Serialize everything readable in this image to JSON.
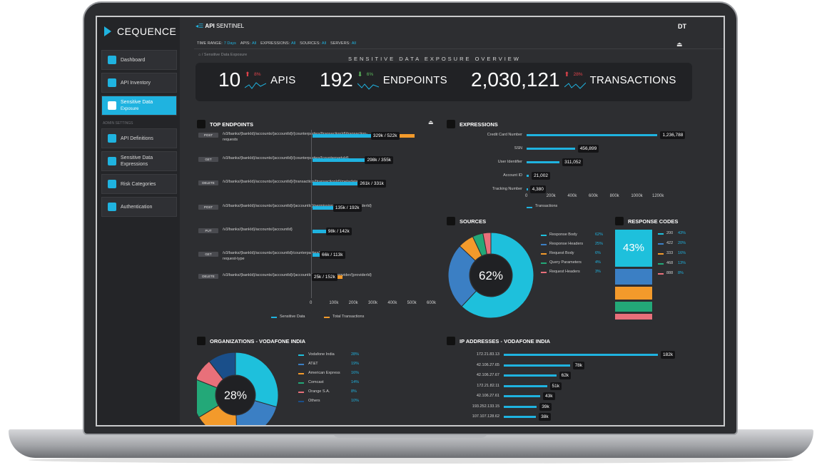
{
  "sidebar": {
    "logo_text": "CEQUENCE",
    "items": [
      {
        "label": "Dashboard",
        "icon": "dashboard-icon"
      },
      {
        "label": "API Inventory",
        "icon": "inventory-icon"
      },
      {
        "label": "Sensitive Data",
        "label2": "Exposure",
        "icon": "sensitive-data-icon",
        "active": true
      }
    ],
    "admin_label": "ADMIN SETTINGS",
    "admin_items": [
      {
        "label": "API Definitions",
        "icon": "document-icon"
      },
      {
        "label": "Sensitive Data",
        "label2": "Expressions",
        "icon": "expressions-icon"
      },
      {
        "label": "Risk Categories",
        "icon": "shield-icon"
      },
      {
        "label": "Authentication",
        "icon": "lock-icon"
      }
    ]
  },
  "header": {
    "app_title": "API",
    "app_subtitle": "SENTINEL",
    "user_initials": "DT",
    "filters": [
      {
        "label": "TIME RANGE:",
        "value": "7 Days"
      },
      {
        "label": "APIS:",
        "value": "All"
      },
      {
        "label": "EXPRESSIONS:",
        "value": "All"
      },
      {
        "label": "SOURCES:",
        "value": "All"
      },
      {
        "label": "SERVERS:",
        "value": "All"
      }
    ],
    "breadcrumb": "/ Sensitive Data Exposure"
  },
  "overview": {
    "title": "SENSITIVE DATA EXPOSURE OVERVIEW",
    "kpis": [
      {
        "value": "10",
        "label": "APIS",
        "change": "8%",
        "direction": "up",
        "color": "#e2434b"
      },
      {
        "value": "192",
        "label": "ENDPOINTS",
        "change": "6%",
        "direction": "down",
        "color": "#5cb85c"
      },
      {
        "value": "2,030,121",
        "label": "TRANSACTIONS",
        "change": "28%",
        "direction": "up",
        "color": "#e2434b"
      }
    ]
  },
  "top_endpoints": {
    "title": "TOP ENDPOINTS",
    "legend": [
      "Sensitive Data",
      "Total Transactions"
    ],
    "x_ticks": [
      "0",
      "100k",
      "200k",
      "300k",
      "400k",
      "500k",
      "600k"
    ],
    "rows": [
      {
        "method": "POST",
        "path": "/v3/banks/{bankId}/accounts/{accountId}/{counterparties/{transactionId}/transaction-requests",
        "sensitive": 329,
        "total": 522,
        "label": "329k / 522k"
      },
      {
        "method": "GET",
        "path": "/v3/banks/{bankId}/accounts/{accountId}/{counterparties/{counterpartyId}",
        "sensitive": 298,
        "total": 355,
        "label": "298k / 355k"
      },
      {
        "method": "DELETE",
        "path": "/v3/banks/{bankId}/accounts/{accountId}/{transaction/{transactionId}/metadata/narrative",
        "sensitive": 261,
        "total": 331,
        "label": "261k / 331k"
      },
      {
        "method": "POST",
        "path": "/v3/banks/{bankId}/accounts/{accountId}/{accountId}/permissions/provider/{providerId}",
        "sensitive": 135,
        "total": 192,
        "label": "135k / 192k"
      },
      {
        "method": "PUT",
        "path": "/v3/banks/{bankId}/accounts/{accountId}",
        "sensitive": 98,
        "total": 142,
        "label": "98k / 142k"
      },
      {
        "method": "GET",
        "path": "/v3/banks/{bankId}/accounts/{accountId}/counterparties/transaction-request-type",
        "sensitive": 66,
        "total": 113,
        "label": "66k / 113k"
      },
      {
        "method": "DELETE",
        "path": "/v3/banks/{bankId}/accounts/{accountId}/{accountId}/permissions/provider/{providerId}",
        "sensitive": 25,
        "total": 152,
        "label": "25k / 152k"
      }
    ]
  },
  "expressions": {
    "title": "EXPRESSIONS",
    "legend": "Transactions",
    "x_ticks": [
      "0",
      "200k",
      "400k",
      "600k",
      "800k",
      "1000k",
      "1200k"
    ],
    "rows": [
      {
        "label": "Credit Card Number",
        "value": 1236788,
        "display": "1,236,788"
      },
      {
        "label": "SSN",
        "value": 456899,
        "display": "456,899"
      },
      {
        "label": "User Identifier",
        "value": 311052,
        "display": "311,052"
      },
      {
        "label": "Account ID",
        "value": 21002,
        "display": "21,002"
      },
      {
        "label": "Tracking Number",
        "value": 4380,
        "display": "4,380"
      }
    ]
  },
  "sources": {
    "title": "SOURCES",
    "center": "62%",
    "items": [
      {
        "label": "Response Body",
        "pct": "62%",
        "value": 62,
        "color": "#1ec0dc"
      },
      {
        "label": "Response Headers",
        "pct": "25%",
        "value": 25,
        "color": "#3b7fc4"
      },
      {
        "label": "Request Body",
        "pct": "6%",
        "value": 6,
        "color": "#f39a2b"
      },
      {
        "label": "Query Parameters",
        "pct": "4%",
        "value": 4,
        "color": "#23a878"
      },
      {
        "label": "Request Headers",
        "pct": "3%",
        "value": 3,
        "color": "#e8707a"
      }
    ]
  },
  "response_codes": {
    "title": "RESPONSE CODES",
    "center": "43%",
    "items": [
      {
        "code": "200",
        "pct": "43%",
        "value": 43,
        "color": "#1ec0dc"
      },
      {
        "code": "422",
        "pct": "20%",
        "value": 20,
        "color": "#3b7fc4"
      },
      {
        "code": "333",
        "pct": "16%",
        "value": 16,
        "color": "#f39a2b"
      },
      {
        "code": "468",
        "pct": "13%",
        "value": 13,
        "color": "#23a878"
      },
      {
        "code": "888",
        "pct": "8%",
        "value": 8,
        "color": "#e8707a"
      }
    ]
  },
  "organizations": {
    "title": "ORGANIZATIONS - VODAFONE INDIA",
    "center": "28%",
    "items": [
      {
        "label": "Vodafone India",
        "pct": "28%",
        "value": 28,
        "color": "#1ec0dc"
      },
      {
        "label": "AT&T",
        "pct": "19%",
        "value": 19,
        "color": "#3b7fc4"
      },
      {
        "label": "American Express",
        "pct": "16%",
        "value": 16,
        "color": "#f39a2b"
      },
      {
        "label": "Comcast",
        "pct": "14%",
        "value": 14,
        "color": "#23a878"
      },
      {
        "label": "Orange S.A.",
        "pct": "8%",
        "value": 8,
        "color": "#e8707a"
      },
      {
        "label": "Others",
        "pct": "10%",
        "value": 10,
        "color": "#1a4f8a"
      }
    ]
  },
  "ip_addresses": {
    "title": "IP ADDRESSES - VODAFONE INDIA",
    "rows": [
      {
        "ip": "172.21.83.13",
        "value": 182,
        "display": "182k"
      },
      {
        "ip": "42.106.27.65",
        "value": 78,
        "display": "78k"
      },
      {
        "ip": "42.106.27.67",
        "value": 62,
        "display": "62k"
      },
      {
        "ip": "172.21.82.11",
        "value": 51,
        "display": "51k"
      },
      {
        "ip": "42.106.27.61",
        "value": 43,
        "display": "43k"
      },
      {
        "ip": "193.252.133.15",
        "value": 39,
        "display": "39k"
      },
      {
        "ip": "107.107.128.62",
        "value": 38,
        "display": "38k"
      }
    ]
  }
}
